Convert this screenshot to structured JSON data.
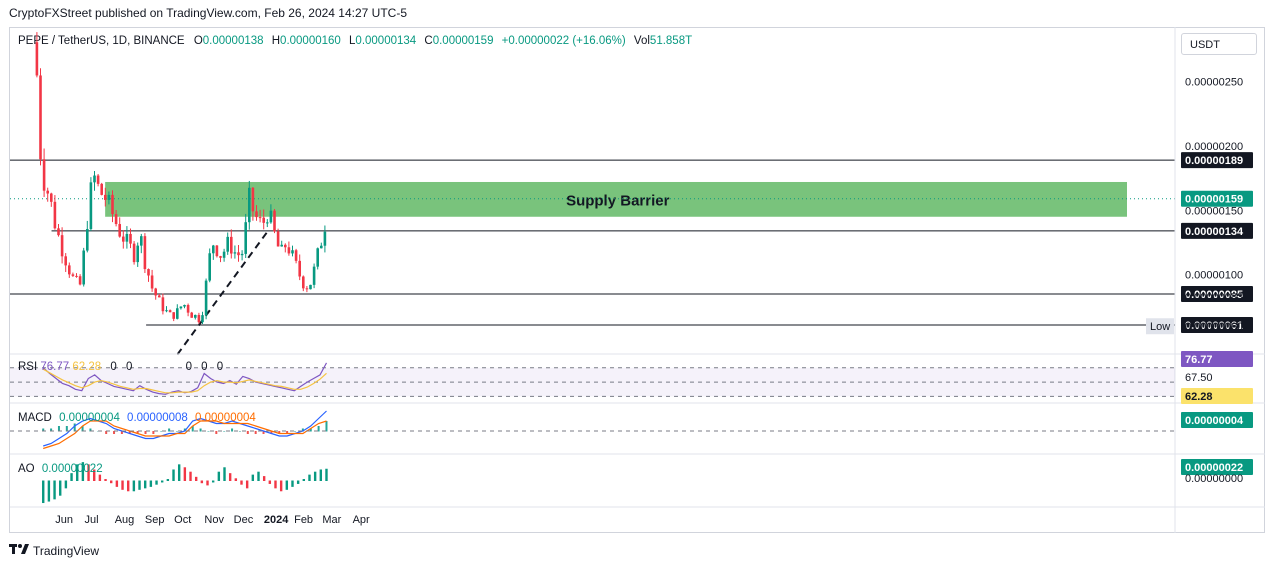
{
  "header": {
    "publisher": "CryptoFXStreet published on TradingView.com, Feb 26, 2024 14:27 UTC-5"
  },
  "toolbar": {
    "currency": "USDT"
  },
  "ohlc": {
    "symbol": "PEPE / TetherUS, 1D, BINANCE",
    "o_label": "O",
    "o": "0.00000138",
    "h_label": "H",
    "h": "0.00000160",
    "l_label": "L",
    "l": "0.00000134",
    "c_label": "C",
    "c": "0.00000159",
    "change": "+0.00000022 (+16.06%)",
    "vol_label": "Vol",
    "vol": "51.858T"
  },
  "colors": {
    "up": "#089981",
    "down": "#f23645",
    "supply_zone": "#4caf50",
    "rsi": "#7e57c2",
    "rsi_ma": "#f5c342",
    "macd": "#2962ff",
    "signal": "#ff6d00"
  },
  "footer": {
    "brand": "TradingView",
    "icon": "tradingview-logo-icon"
  },
  "chart_data": [
    {
      "type": "candlestick",
      "title": "PEPE / TetherUS, 1D, BINANCE",
      "x_ticks": [
        "Jun",
        "Jul",
        "Aug",
        "Sep",
        "Oct",
        "Nov",
        "Dec",
        "2024",
        "Feb",
        "Mar",
        "Apr"
      ],
      "y_ticks": [
        "0.00000250",
        "0.00000200",
        "0.00000150",
        "0.00000100",
        "0.00000083",
        "0.00000060"
      ],
      "y_range": [
        4e-07,
        2.9e-06
      ],
      "horizontal_levels": [
        {
          "label": "0.00000189",
          "value": 1.89e-06
        },
        {
          "label": "0.00000134",
          "value": 1.34e-06
        },
        {
          "label": "0.00000085",
          "value": 8.5e-07
        },
        {
          "label": "0.00000061",
          "value": 6.1e-07
        }
      ],
      "current_price": {
        "label": "0.00000159",
        "value": 1.59e-06
      },
      "low_marker": {
        "text": "Low",
        "label": "0.00000060"
      },
      "supply_zone": {
        "label": "Supply Barrier",
        "top": 1.72e-06,
        "bottom": 1.45e-06
      },
      "trendline": {
        "from": [
          "Sep 26",
          3.8e-07
        ],
        "to": [
          "Dec 28",
          1.34e-06
        ],
        "style": "dashed"
      },
      "close_path": [
        [
          "May 5",
          2.55e-06
        ],
        [
          "May 8",
          2e-06
        ],
        [
          "May 12",
          1.75e-06
        ],
        [
          "May 18",
          1.6e-06
        ],
        [
          "May 25",
          1.35e-06
        ],
        [
          "Jun 1",
          1.18e-06
        ],
        [
          "Jun 10",
          9.8e-07
        ],
        [
          "Jun 18",
          9e-07
        ],
        [
          "Jun 22",
          1.15e-06
        ],
        [
          "Jun 28",
          1.6e-06
        ],
        [
          "Jul 3",
          1.75e-06
        ],
        [
          "Jul 8",
          1.65e-06
        ],
        [
          "Jul 14",
          1.6e-06
        ],
        [
          "Jul 20",
          1.5e-06
        ],
        [
          "Jul 28",
          1.35e-06
        ],
        [
          "Aug 5",
          1.25e-06
        ],
        [
          "Aug 14",
          1.15e-06
        ],
        [
          "Aug 18",
          1.35e-06
        ],
        [
          "Aug 24",
          1.1e-06
        ],
        [
          "Aug 31",
          9e-07
        ],
        [
          "Sep 8",
          7.8e-07
        ],
        [
          "Sep 18",
          6.8e-07
        ],
        [
          "Sep 25",
          7e-07
        ],
        [
          "Oct 2",
          7.8e-07
        ],
        [
          "Oct 10",
          7e-07
        ],
        [
          "Oct 18",
          6.6e-07
        ],
        [
          "Oct 23",
          7.5e-07
        ],
        [
          "Oct 28",
          1.1e-06
        ],
        [
          "Nov 2",
          1.25e-06
        ],
        [
          "Nov 10",
          1.15e-06
        ],
        [
          "Nov 18",
          1.25e-06
        ],
        [
          "Nov 26",
          1.15e-06
        ],
        [
          "Dec 3",
          1.18e-06
        ],
        [
          "Dec 8",
          1.6e-06
        ],
        [
          "Dec 15",
          1.45e-06
        ],
        [
          "Dec 22",
          1.38e-06
        ],
        [
          "Dec 28",
          1.5e-06
        ],
        [
          "Jan 4",
          1.3e-06
        ],
        [
          "Jan 10",
          1.15e-06
        ],
        [
          "Jan 16",
          1.25e-06
        ],
        [
          "Jan 24",
          1.1e-06
        ],
        [
          "Feb 1",
          9.5e-07
        ],
        [
          "Feb 8",
          9e-07
        ],
        [
          "Feb 14",
          1.05e-06
        ],
        [
          "Feb 20",
          1.25e-06
        ],
        [
          "Feb 24",
          1.35e-06
        ],
        [
          "Feb 26",
          1.59e-06
        ]
      ]
    },
    {
      "type": "line",
      "name": "RSI",
      "label": "RSI",
      "value_label": "76.77",
      "ma_label": "62.28",
      "extra_labels": [
        "0",
        "0",
        "0",
        "0",
        "0"
      ],
      "levels": [
        "67.50"
      ],
      "badges": [
        "76.77",
        "62.28"
      ],
      "series": [
        {
          "name": "RSI",
          "values": [
            70,
            62,
            55,
            48,
            45,
            40,
            38,
            55,
            60,
            52,
            48,
            44,
            42,
            40,
            38,
            45,
            40,
            36,
            34,
            33,
            36,
            38,
            35,
            37,
            42,
            62,
            55,
            50,
            48,
            52,
            47,
            58,
            55,
            50,
            48,
            46,
            44,
            42,
            40,
            38,
            44,
            50,
            55,
            60,
            76.77
          ]
        },
        {
          "name": "MA",
          "values": [
            68,
            63,
            58,
            53,
            49,
            45,
            42,
            45,
            50,
            52,
            50,
            47,
            44,
            42,
            40,
            41,
            41,
            39,
            37,
            35,
            35,
            36,
            36,
            36,
            38,
            45,
            50,
            52,
            50,
            50,
            49,
            51,
            53,
            51,
            49,
            47,
            45,
            44,
            42,
            40,
            40,
            43,
            48,
            54,
            62.28
          ]
        }
      ]
    },
    {
      "type": "bar",
      "name": "MACD",
      "label": "MACD",
      "values_text": [
        "0.00000004",
        "0.00000008",
        "0.00000004"
      ],
      "badge": "0.00000004",
      "series": [
        {
          "name": "MACD",
          "values": [
            -6,
            -5,
            -3,
            -1,
            2,
            4,
            5,
            4,
            3,
            1,
            0,
            -1,
            -2,
            -3,
            -3,
            -2,
            -1,
            -1,
            0,
            4,
            5,
            4,
            3,
            3,
            4,
            3,
            2,
            1,
            0,
            -1,
            -2,
            -2,
            -1,
            0,
            2,
            5,
            8
          ]
        },
        {
          "name": "Signal",
          "values": [
            -7,
            -6,
            -5,
            -3,
            -1,
            2,
            4,
            4,
            4,
            2,
            1,
            0,
            -1,
            -2,
            -2,
            -2,
            -2,
            -1,
            -1,
            2,
            4,
            4,
            4,
            3,
            3,
            3,
            3,
            2,
            1,
            0,
            -1,
            -1,
            -1,
            -1,
            1,
            3,
            4
          ]
        }
      ]
    },
    {
      "type": "bar",
      "name": "AO",
      "label": "AO",
      "value_label": "0.00000022",
      "badges": [
        "0.00000022",
        "0.00000000"
      ],
      "values": [
        -30,
        -28,
        -25,
        -20,
        -10,
        10,
        22,
        25,
        22,
        15,
        8,
        2,
        -3,
        -8,
        -12,
        -14,
        -14,
        -12,
        -10,
        -8,
        -5,
        -2,
        2,
        15,
        22,
        18,
        12,
        5,
        -3,
        -6,
        -2,
        12,
        18,
        10,
        3,
        -5,
        -10,
        8,
        12,
        6,
        -4,
        -10,
        -14,
        -12,
        -8,
        -4,
        2,
        8,
        12,
        15,
        16
      ]
    }
  ]
}
